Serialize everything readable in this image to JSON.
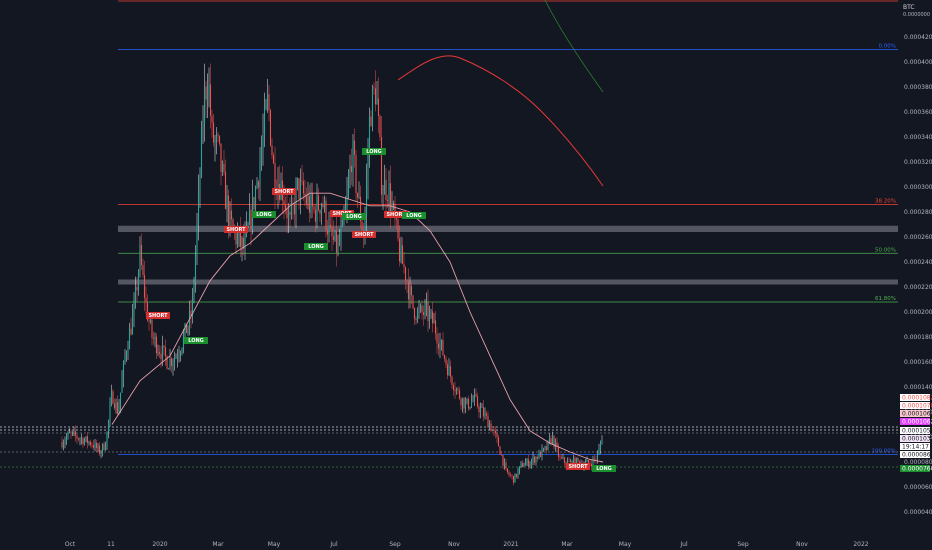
{
  "symbol": {
    "title": "BTC",
    "sub": "0.0000000"
  },
  "colors": {
    "background": "#131722",
    "axis_text": "#b2b5be",
    "candle_up": "#e0f3f1",
    "candle_up_body": "#26a69a",
    "candle_down": "#ef5350",
    "ma": "#e8a0ac",
    "fib_red": "#f44336",
    "fib_green": "#4caf50",
    "fib_blue": "#2962ff",
    "zone": "#6b6e78",
    "long_badge": "#1b8f2e",
    "short_badge": "#d32f2f"
  },
  "chart_data": {
    "type": "candlestick",
    "x_ticks": [
      "Oct",
      "11",
      "2020",
      "Mar",
      "May",
      "Jul",
      "Sep",
      "Nov",
      "2021",
      "Mar",
      "May",
      "Jul",
      "Sep",
      "Nov",
      "2022"
    ],
    "y_ticks": [
      "0.0004200",
      "0.0004000",
      "0.0003800",
      "0.0003600",
      "0.0003400",
      "0.0003200",
      "0.0003000",
      "0.0002800",
      "0.0002600",
      "0.0002400",
      "0.0002200",
      "0.0002000",
      "0.0001800",
      "0.0001600",
      "0.0001400",
      "0.0001200",
      "0.0001000",
      "0.0000800",
      "0.0000600",
      "0.0000400"
    ],
    "fib_levels": [
      {
        "label": "0.00%",
        "value": 0.00041,
        "color": "#2962ff"
      },
      {
        "label": "38.20%",
        "value": 0.000286,
        "color": "#f44336"
      },
      {
        "label": "50.00%",
        "value": 0.000247,
        "color": "#4caf50"
      },
      {
        "label": "61.80%",
        "value": 0.000208,
        "color": "#4caf50"
      },
      {
        "label": "100.00%",
        "value": 8.6e-05,
        "color": "#2962ff"
      }
    ],
    "zones": [
      {
        "from": 0.000264,
        "to": 0.000269
      },
      {
        "from": 0.000222,
        "to": 0.000226
      }
    ],
    "price_badges": [
      {
        "text": "0.0001082",
        "bg": "#ffffff",
        "fg": "#ef5350"
      },
      {
        "text": "0.0001078",
        "bg": "#ffffff",
        "fg": "#ef5350"
      },
      {
        "text": "0.0001067",
        "bg": "#f8c8cc",
        "fg": "#131722"
      },
      {
        "text": "0.0001062",
        "bg": "#e040fb",
        "fg": "#ffffff"
      },
      {
        "text": "0.0001052",
        "bg": "#ffffff",
        "fg": "#131722"
      },
      {
        "text": "0.0001033",
        "bg": "#f3e5f5",
        "fg": "#131722"
      },
      {
        "text": "19:14:17",
        "bg": "#ffffff",
        "fg": "#131722"
      },
      {
        "text": "0.0000865",
        "bg": "#ffffff",
        "fg": "#131722"
      },
      {
        "text": "0.0000760",
        "bg": "#1b8f2e",
        "fg": "#ffffff"
      }
    ],
    "signals": [
      {
        "text": "SHORT",
        "kind": "short"
      },
      {
        "text": "LONG",
        "kind": "long"
      },
      {
        "text": "SHORT",
        "kind": "short"
      },
      {
        "text": "LONG",
        "kind": "long"
      },
      {
        "text": "SHORT",
        "kind": "short"
      },
      {
        "text": "LONG",
        "kind": "long"
      },
      {
        "text": "SHORT",
        "kind": "short"
      },
      {
        "text": "LONG",
        "kind": "long"
      },
      {
        "text": "SHORT",
        "kind": "short"
      },
      {
        "text": "LONG",
        "kind": "long"
      },
      {
        "text": "SHORT",
        "kind": "short"
      },
      {
        "text": "LONG",
        "kind": "long"
      },
      {
        "text": "SHORT",
        "kind": "short"
      },
      {
        "text": "LONG",
        "kind": "long"
      }
    ]
  }
}
